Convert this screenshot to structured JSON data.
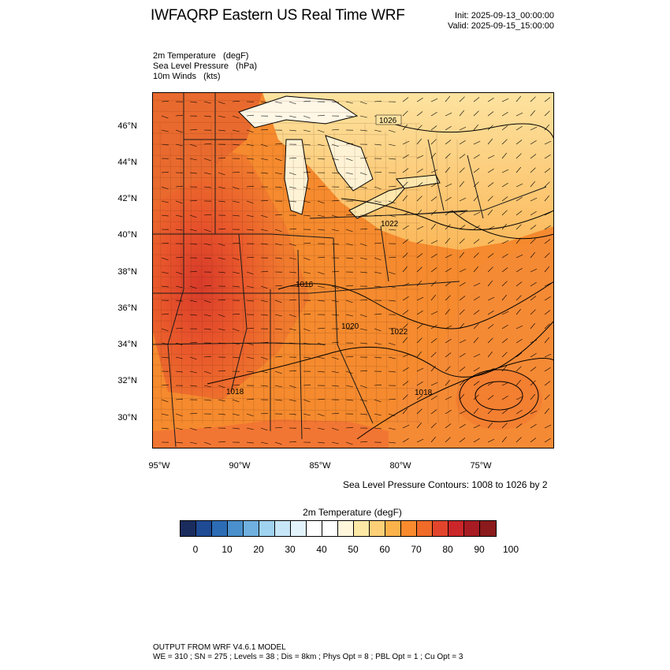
{
  "title": "IWFAQRP Eastern US Real Time WRF",
  "init": "Init: 2025-09-13_00:00:00",
  "valid": "Valid: 2025-09-15_15:00:00",
  "variables": [
    "2m Temperature   (degF)",
    "Sea Level Pressure   (hPa)",
    "10m Winds   (kts)"
  ],
  "lat_labels": [
    "46°N",
    "44°N",
    "42°N",
    "40°N",
    "38°N",
    "36°N",
    "34°N",
    "32°N",
    "30°N"
  ],
  "lon_labels": [
    "95°W",
    "90°W",
    "85°W",
    "80°W",
    "75°W"
  ],
  "contour_labels": [
    "1026",
    "1022",
    "1016",
    "1020",
    "1022",
    "1018",
    "1018"
  ],
  "contour_note": "Sea Level Pressure Contours: 1008 to 1026 by 2",
  "colorbar": {
    "title": "2m Temperature  (degF)",
    "ticks": [
      "0",
      "10",
      "20",
      "30",
      "40",
      "50",
      "60",
      "70",
      "80",
      "90",
      "100"
    ],
    "colors": [
      "#1a2b5e",
      "#1f4a94",
      "#2c6cb5",
      "#4a90cc",
      "#6fb0df",
      "#9fd3f0",
      "#c7e6f7",
      "#e3f3fb",
      "#ffffff",
      "#ffffff",
      "#fff6dc",
      "#fee8a6",
      "#fdd077",
      "#fcb24b",
      "#f98b2e",
      "#f06a28",
      "#e2452b",
      "#cb2629",
      "#a81b23",
      "#8a1a1b"
    ]
  },
  "model_info": {
    "line1": "OUTPUT FROM WRF V4.6.1 MODEL",
    "line2": "WE = 310 ; SN = 275 ; Levels = 38 ; Dis = 8km ; Phys Opt = 8 ; PBL Opt = 1 ; Cu Opt = 3"
  }
}
